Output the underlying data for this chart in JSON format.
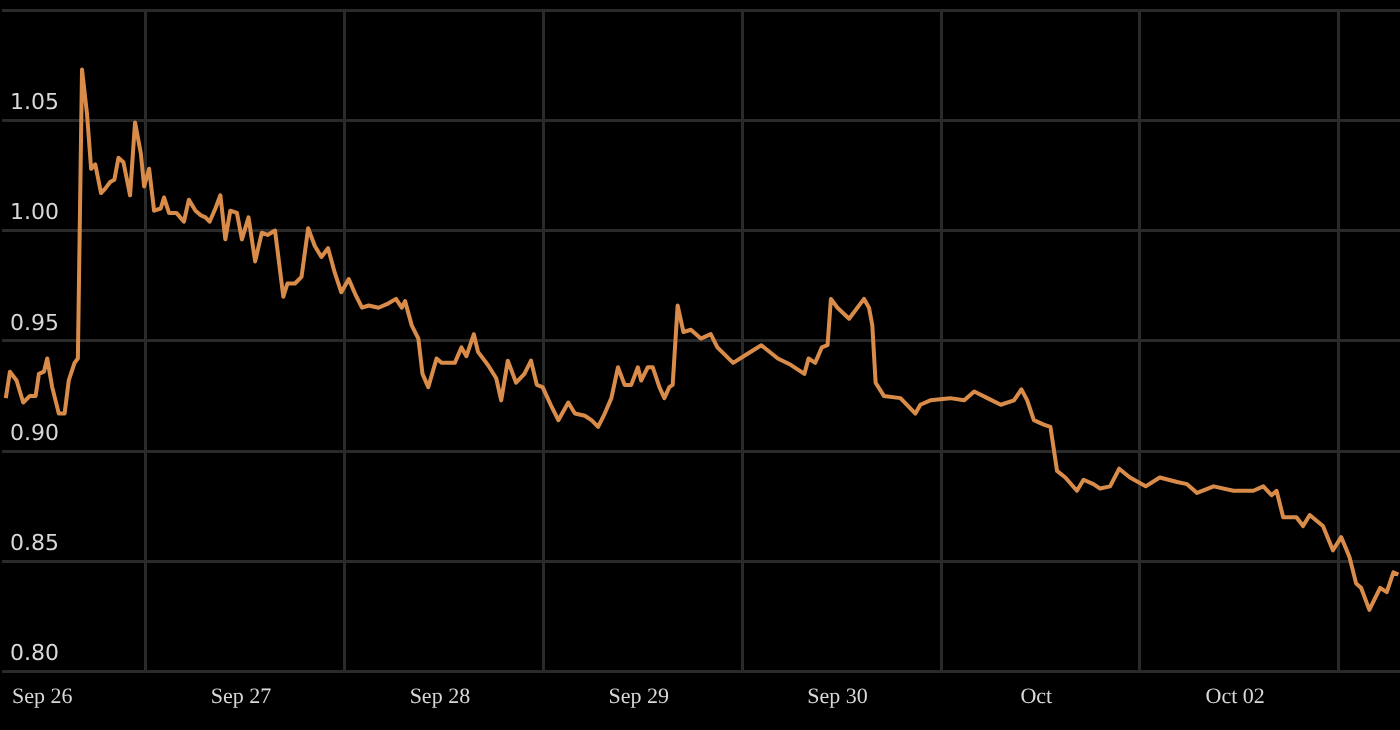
{
  "chart_data": {
    "type": "line",
    "x": [
      "--09-25T19:36",
      "--09-25T20:06",
      "--09-25T20:54",
      "--09-25T21:42",
      "--09-25T22:30",
      "--09-25T23:12",
      "--09-25T23:36",
      "--09-26T00:12",
      "--09-26T00:36",
      "--09-26T01:12",
      "--09-26T02:00",
      "--09-26T02:42",
      "--09-26T03:12",
      "--09-26T03:54",
      "--09-26T04:18",
      "--09-26T04:48",
      "--09-26T05:24",
      "--09-26T05:54",
      "--09-26T06:24",
      "--09-26T07:06",
      "--09-26T07:36",
      "--09-26T08:12",
      "--09-26T08:42",
      "--09-26T09:12",
      "--09-26T09:48",
      "--09-26T10:36",
      "--09-26T11:12",
      "--09-26T11:54",
      "--09-26T12:18",
      "--09-26T12:54",
      "--09-26T13:30",
      "--09-26T14:18",
      "--09-26T14:42",
      "--09-26T15:18",
      "--09-26T16:12",
      "--09-26T17:06",
      "--09-26T17:42",
      "--09-26T18:30",
      "--09-26T19:06",
      "--09-26T19:42",
      "--09-26T20:12",
      "--09-26T20:54",
      "--09-26T21:30",
      "--09-26T22:06",
      "--09-26T22:42",
      "--09-26T23:30",
      "--09-27T00:06",
      "--09-27T00:54",
      "--09-27T01:42",
      "--09-27T02:30",
      "--09-27T03:12",
      "--09-27T04:06",
      "--09-27T05:06",
      "--09-27T05:36",
      "--09-27T06:30",
      "--09-27T07:18",
      "--09-27T08:06",
      "--09-27T08:54",
      "--09-27T09:42",
      "--09-27T10:30",
      "--09-27T11:18",
      "--09-27T12:06",
      "--09-27T13:00",
      "--09-27T13:48",
      "--09-27T14:36",
      "--09-27T15:24",
      "--09-27T16:36",
      "--09-27T17:48",
      "--09-27T18:42",
      "--09-27T19:24",
      "--09-27T19:48",
      "--09-27T20:36",
      "--09-27T21:24",
      "--09-27T21:54",
      "--09-27T22:36",
      "--09-27T23:36",
      "--09-28T00:12",
      "--09-28T01:48",
      "--09-28T02:36",
      "--09-28T03:12",
      "--09-28T04:06",
      "--09-28T04:36",
      "--09-28T05:48",
      "--09-28T06:48",
      "--09-28T07:24",
      "--09-28T08:12",
      "--09-28T09:12",
      "--09-28T10:12",
      "--09-28T11:00",
      "--09-28T11:42",
      "--09-28T12:24",
      "--09-28T13:30",
      "--09-28T14:18",
      "--09-28T15:30",
      "--09-28T16:18",
      "--09-28T17:30",
      "--09-28T18:18",
      "--09-28T19:06",
      "--09-28T19:54",
      "--09-28T20:42",
      "--09-28T21:30",
      "--09-28T22:18",
      "--09-28T23:06",
      "--09-28T23:54",
      "--09-29T00:18",
      "--09-29T01:06",
      "--09-29T01:42",
      "--09-29T02:30",
      "--09-29T03:06",
      "--09-29T03:42",
      "--09-29T04:06",
      "--09-29T04:42",
      "--09-29T05:24",
      "--09-29T06:18",
      "--09-29T07:30",
      "--09-29T08:42",
      "--09-29T09:30",
      "--09-29T11:24",
      "--09-29T13:06",
      "--09-29T14:48",
      "--09-29T16:48",
      "--09-29T18:24",
      "--09-29T20:00",
      "--09-29T20:30",
      "--09-29T21:18",
      "--09-29T22:06",
      "--09-29T22:48",
      "--09-29T23:12",
      "--09-30T00:00",
      "--09-30T01:24",
      "--09-30T03:12",
      "--09-30T03:48",
      "--09-30T04:12",
      "--09-30T04:36",
      "--09-30T05:36",
      "--09-30T07:36",
      "--09-30T09:24",
      "--09-30T10:00",
      "--09-30T11:12",
      "--09-30T13:36",
      "--09-30T15:18",
      "--09-30T16:30",
      "--09-30T18:06",
      "--09-30T19:42",
      "--09-30T21:18",
      "--09-30T22:12",
      "--09-30T22:54",
      "--09-30T23:42",
      "--10-01T00:54",
      "--10-01T01:42",
      "--10-01T02:30",
      "--10-01T03:30",
      "--10-01T04:54",
      "--10-01T05:42",
      "--10-01T06:54",
      "--10-01T07:42",
      "--10-01T08:54",
      "--10-01T10:00",
      "--10-01T11:18",
      "--10-01T13:12",
      "--10-01T14:54",
      "--10-01T17:00",
      "--10-01T18:12",
      "--10-01T19:24",
      "--10-01T21:24",
      "--10-01T23:48",
      "--10-02T02:12",
      "--10-02T03:24",
      "--10-02T04:24",
      "--10-02T05:00",
      "--10-02T05:48",
      "--10-02T07:24",
      "--10-02T08:12",
      "--10-02T09:00",
      "--10-02T10:36",
      "--10-02T11:48",
      "--10-02T12:48",
      "--10-02T13:48",
      "--10-02T14:36",
      "--10-02T15:12",
      "--10-02T16:12",
      "--10-02T17:30",
      "--10-02T18:18",
      "--10-02T19:06",
      "--10-02T19:42"
    ],
    "series": [
      {
        "color": "#d98c4a",
        "values": [
          0.924,
          0.936,
          0.932,
          0.922,
          0.925,
          0.925,
          0.935,
          0.936,
          0.942,
          0.929,
          0.917,
          0.917,
          0.932,
          0.94,
          0.942,
          1.073,
          1.053,
          1.028,
          1.03,
          1.017,
          1.019,
          1.022,
          1.023,
          1.033,
          1.031,
          1.016,
          1.049,
          1.035,
          1.02,
          1.028,
          1.009,
          1.01,
          1.015,
          1.008,
          1.008,
          1.004,
          1.014,
          1.009,
          1.007,
          1.006,
          1.004,
          1.01,
          1.016,
          0.996,
          1.009,
          1.008,
          0.996,
          1.006,
          0.986,
          0.999,
          0.998,
          1.0,
          0.97,
          0.976,
          0.976,
          0.979,
          1.001,
          0.993,
          0.988,
          0.992,
          0.981,
          0.972,
          0.978,
          0.971,
          0.965,
          0.966,
          0.965,
          0.967,
          0.969,
          0.965,
          0.968,
          0.957,
          0.951,
          0.935,
          0.929,
          0.942,
          0.94,
          0.94,
          0.947,
          0.943,
          0.953,
          0.945,
          0.939,
          0.933,
          0.923,
          0.941,
          0.931,
          0.935,
          0.941,
          0.93,
          0.929,
          0.92,
          0.914,
          0.922,
          0.917,
          0.916,
          0.914,
          0.911,
          0.917,
          0.924,
          0.938,
          0.93,
          0.93,
          0.938,
          0.932,
          0.938,
          0.938,
          0.929,
          0.924,
          0.929,
          0.93,
          0.966,
          0.954,
          0.955,
          0.951,
          0.953,
          0.947,
          0.94,
          0.944,
          0.948,
          0.942,
          0.939,
          0.935,
          0.942,
          0.94,
          0.947,
          0.948,
          0.969,
          0.965,
          0.96,
          0.969,
          0.965,
          0.957,
          0.931,
          0.925,
          0.924,
          0.917,
          0.921,
          0.923,
          0.924,
          0.923,
          0.927,
          0.924,
          0.921,
          0.923,
          0.928,
          0.923,
          0.914,
          0.912,
          0.911,
          0.891,
          0.888,
          0.882,
          0.887,
          0.885,
          0.883,
          0.884,
          0.892,
          0.888,
          0.884,
          0.888,
          0.886,
          0.885,
          0.881,
          0.884,
          0.882,
          0.882,
          0.884,
          0.88,
          0.882,
          0.87,
          0.87,
          0.866,
          0.871,
          0.866,
          0.855,
          0.861,
          0.852,
          0.84,
          0.838,
          0.828,
          0.838,
          0.836,
          0.845,
          0.844
        ]
      }
    ],
    "xlim": [
      "--09-25T19:12",
      "--10-02T19:54"
    ],
    "xticks": [
      {
        "value": "--09-26",
        "label": "Sep 26"
      },
      {
        "value": "--09-26T12:30",
        "label": null
      },
      {
        "value": "--09-27",
        "label": "Sep 27"
      },
      {
        "value": "--09-27T12:30",
        "label": null
      },
      {
        "value": "--09-28",
        "label": "Sep 28"
      },
      {
        "value": "--09-28T12:30",
        "label": null
      },
      {
        "value": "--09-29",
        "label": "Sep 29"
      },
      {
        "value": "--09-29T12:30",
        "label": null
      },
      {
        "value": "--09-30",
        "label": "Sep 30"
      },
      {
        "value": "--09-30T12:30",
        "label": null
      },
      {
        "value": "--10-01",
        "label": "Oct"
      },
      {
        "value": "--10-01T12:30",
        "label": null
      },
      {
        "value": "--10-02",
        "label": "Oct 02"
      },
      {
        "value": "--10-02T12:30",
        "label": null
      }
    ],
    "ylim": [
      0.8,
      1.1
    ],
    "yticks": [
      {
        "value": 0.8,
        "label": "0.80"
      },
      {
        "value": 0.85,
        "label": "0.85"
      },
      {
        "value": 0.9,
        "label": "0.90"
      },
      {
        "value": 0.95,
        "label": "0.95"
      },
      {
        "value": 1.0,
        "label": "1.00"
      },
      {
        "value": 1.05,
        "label": "1.05"
      },
      {
        "value": 1.1,
        "label": null
      }
    ],
    "grid": true,
    "legend": false,
    "marker": "none",
    "line_style": "solid"
  }
}
